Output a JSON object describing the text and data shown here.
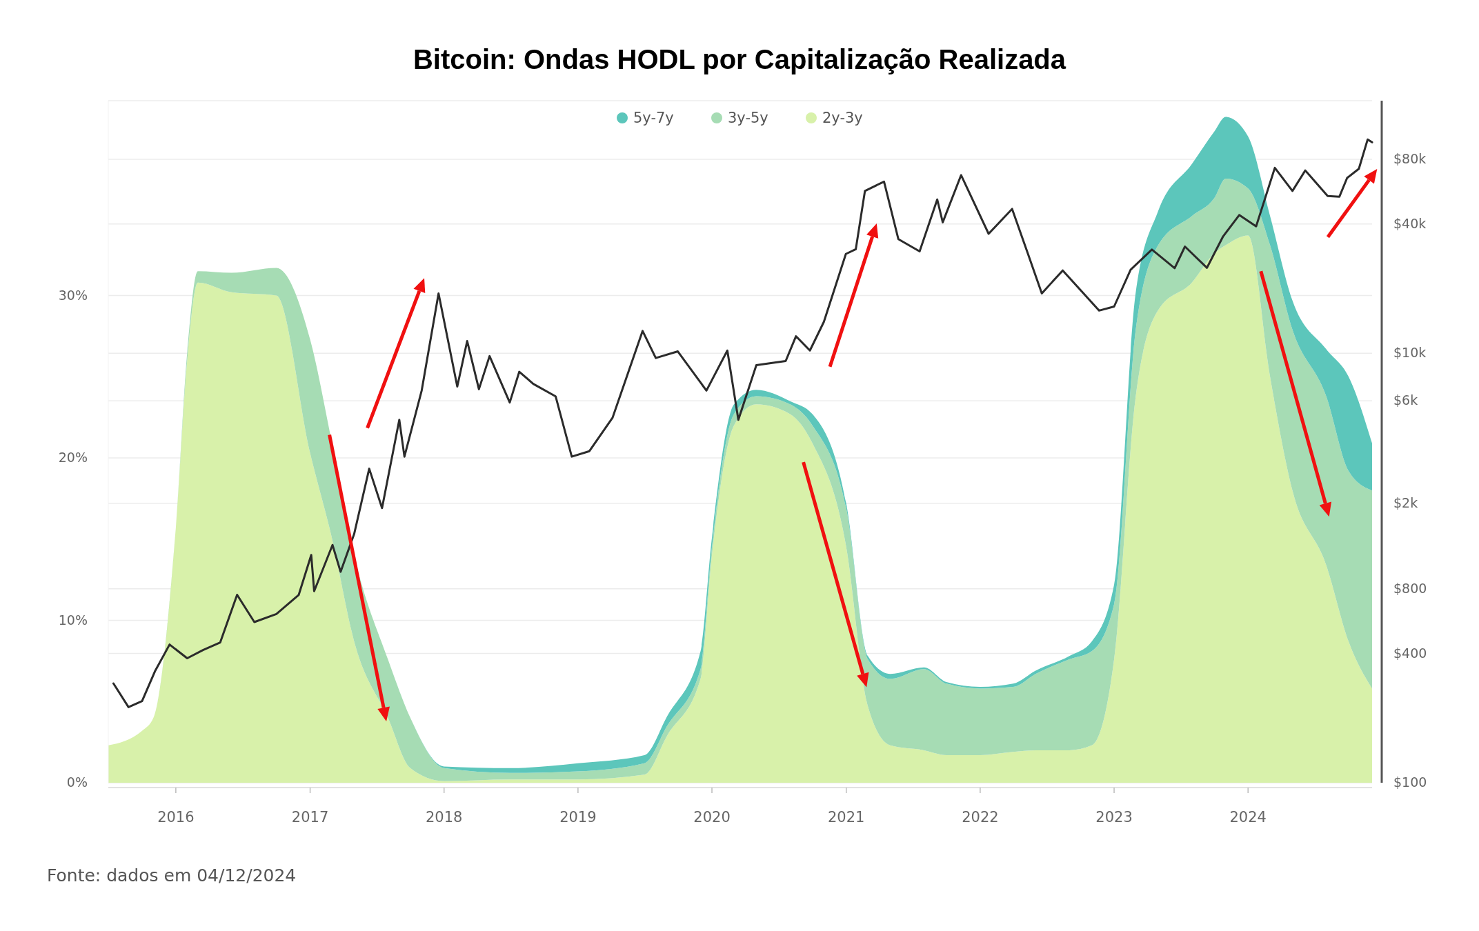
{
  "chart_data": {
    "type": "area",
    "title": "Bitcoin: Ondas HODL por Capitalização Realizada",
    "annotations": [
      "Fonte: dados em 04/12/2024"
    ],
    "stacked": true,
    "legend": "top",
    "grid": "y",
    "x": [
      "2015-07",
      "2015-10",
      "2015-11",
      "2016-01",
      "2016-02",
      "2016-03",
      "2016-06",
      "2016-10",
      "2017-01",
      "2017-03",
      "2017-05",
      "2017-08",
      "2017-10",
      "2018-01",
      "2018-07",
      "2019-01",
      "2019-07",
      "2019-09",
      "2019-12",
      "2020-01",
      "2020-03",
      "2020-05",
      "2020-08",
      "2020-10",
      "2021-01",
      "2021-03",
      "2021-05",
      "2021-08",
      "2021-10",
      "2022-01",
      "2022-04",
      "2022-06",
      "2022-09",
      "2022-11",
      "2023-01",
      "2023-03",
      "2023-05",
      "2023-08",
      "2023-10",
      "2023-11",
      "2024-01",
      "2024-03",
      "2024-05",
      "2024-08",
      "2024-10",
      "2024-12-04"
    ],
    "series": [
      {
        "name": "2y-3y",
        "color": "#d8f1aa",
        "values": [
          2.3,
          3.2,
          4.0,
          15.7,
          26,
          30.8,
          30.2,
          30,
          20.3,
          15.1,
          8.7,
          4,
          0.9,
          0.1,
          0.2,
          0.2,
          0.5,
          2.9,
          6.4,
          14,
          22,
          23.3,
          22.7,
          20.9,
          14.5,
          4.7,
          2.3,
          2.0,
          1.7,
          1.7,
          1.9,
          2.0,
          2.0,
          2.3,
          7.6,
          23.8,
          29.1,
          30.8,
          32.6,
          33.1,
          33.7,
          25,
          18,
          13.4,
          8.7,
          5.8
        ]
      },
      {
        "name": "3y-5y",
        "color": "#a6dcb4",
        "values": [
          0,
          0,
          0,
          0,
          0.5,
          0.7,
          1.2,
          1.7,
          7.0,
          5.9,
          5.3,
          3.6,
          3.1,
          0.8,
          0.4,
          0.5,
          0.7,
          0.6,
          0.6,
          0.5,
          0.7,
          0.5,
          0.6,
          1.1,
          2.4,
          2.9,
          4.1,
          5.0,
          4.4,
          4.1,
          4.0,
          4.7,
          5.6,
          5.8,
          3.4,
          4.1,
          4.0,
          4.1,
          3.4,
          4.1,
          2.9,
          8.1,
          9.9,
          10.4,
          10.5,
          12.2
        ]
      },
      {
        "name": "5y-7y",
        "color": "#5cc6bb",
        "values": [
          0,
          0,
          0,
          0,
          0,
          0,
          0,
          0,
          0,
          0,
          0,
          0,
          0,
          0.1,
          0.3,
          0.5,
          0.5,
          0.6,
          1.1,
          0.6,
          0.6,
          0.4,
          0.2,
          0.7,
          0.3,
          0.2,
          0.3,
          0.1,
          0.1,
          0.1,
          0.2,
          0.2,
          0.2,
          0.6,
          1.2,
          2.3,
          2.1,
          3.2,
          4.1,
          3.8,
          3.2,
          1.8,
          1.8,
          2.9,
          5.8,
          2.9
        ]
      },
      {
        "type": "line",
        "axis": "y2",
        "color": "#2b2b2b",
        "x": [
          "2015-07-15",
          "2015-08-25",
          "2015-10-01",
          "2015-11-05",
          "2015-12-15",
          "2016-02-01",
          "2016-03-15",
          "2016-05-01",
          "2016-06-16",
          "2016-08-02",
          "2016-10-01",
          "2016-12-01",
          "2017-01-04",
          "2017-01-12",
          "2017-03-03",
          "2017-03-25",
          "2017-05-01",
          "2017-06-11",
          "2017-07-16",
          "2017-09-01",
          "2017-09-15",
          "2017-11-01",
          "2017-12-17",
          "2018-02-06",
          "2018-03-05",
          "2018-04-06",
          "2018-05-05",
          "2018-06-29",
          "2018-07-25",
          "2018-09-01",
          "2018-11-01",
          "2018-12-15",
          "2019-02-01",
          "2019-04-05",
          "2019-06-26",
          "2019-08-01",
          "2019-09-30",
          "2019-12-17",
          "2020-02-12",
          "2020-03-13",
          "2020-05-01",
          "2020-07-20",
          "2020-08-17",
          "2020-09-24",
          "2020-11-01",
          "2020-12-31",
          "2021-01-27",
          "2021-02-21",
          "2021-04-14",
          "2021-05-23",
          "2021-07-20",
          "2021-09-06",
          "2021-09-21",
          "2021-11-10",
          "2022-01-24",
          "2022-03-29",
          "2022-05-12",
          "2022-06-18",
          "2022-08-14",
          "2022-11-21",
          "2023-01-01",
          "2023-02-15",
          "2023-04-14",
          "2023-06-15",
          "2023-07-13",
          "2023-09-11",
          "2023-10-25",
          "2023-12-08",
          "2024-01-23",
          "2024-03-14",
          "2024-05-01",
          "2024-06-05",
          "2024-08-05",
          "2024-09-06",
          "2024-09-27",
          "2024-10-29",
          "2024-11-22",
          "2024-12-04"
        ],
        "values": [
          290,
          225,
          240,
          330,
          440,
          380,
          415,
          450,
          750,
          560,
          610,
          750,
          1150,
          780,
          1280,
          960,
          1440,
          2900,
          1900,
          4900,
          3300,
          6700,
          19000,
          7000,
          11400,
          6800,
          9700,
          5900,
          8200,
          7200,
          6300,
          3300,
          3500,
          5000,
          12700,
          9500,
          10200,
          6700,
          10300,
          4900,
          8800,
          9200,
          12000,
          10300,
          14000,
          29000,
          30500,
          57000,
          63000,
          34000,
          29800,
          52000,
          40700,
          67500,
          36000,
          47000,
          28800,
          19000,
          24300,
          15800,
          16500,
          24500,
          30400,
          24900,
          31400,
          25000,
          35000,
          44000,
          39000,
          73000,
          57000,
          71000,
          54000,
          53600,
          65500,
          72300,
          99000,
          96000
        ]
      }
    ],
    "xticks": [
      "2016",
      "2017",
      "2018",
      "2019",
      "2020",
      "2021",
      "2022",
      "2023",
      "2024"
    ],
    "xlim": [
      "2015-07-01",
      "2024-12-04"
    ],
    "ylim": [
      0,
      42
    ],
    "yticks": [
      {
        "value": 0,
        "label": "0%"
      },
      {
        "value": 10,
        "label": "10%"
      },
      {
        "value": 20,
        "label": "20%"
      },
      {
        "value": 30,
        "label": "30%"
      }
    ],
    "log": "y2",
    "y2lim": [
      100,
      150000
    ],
    "y2ticks": [
      {
        "value": 100,
        "label": "$100"
      },
      {
        "value": 400,
        "label": "$400"
      },
      {
        "value": 800,
        "label": "$800"
      },
      {
        "value": 2000,
        "label": "$2k"
      },
      {
        "value": 6000,
        "label": "$6k"
      },
      {
        "value": 10000,
        "label": "$10k"
      },
      {
        "value": 40000,
        "label": "$40k"
      },
      {
        "value": 80000,
        "label": "$80k"
      }
    ]
  }
}
